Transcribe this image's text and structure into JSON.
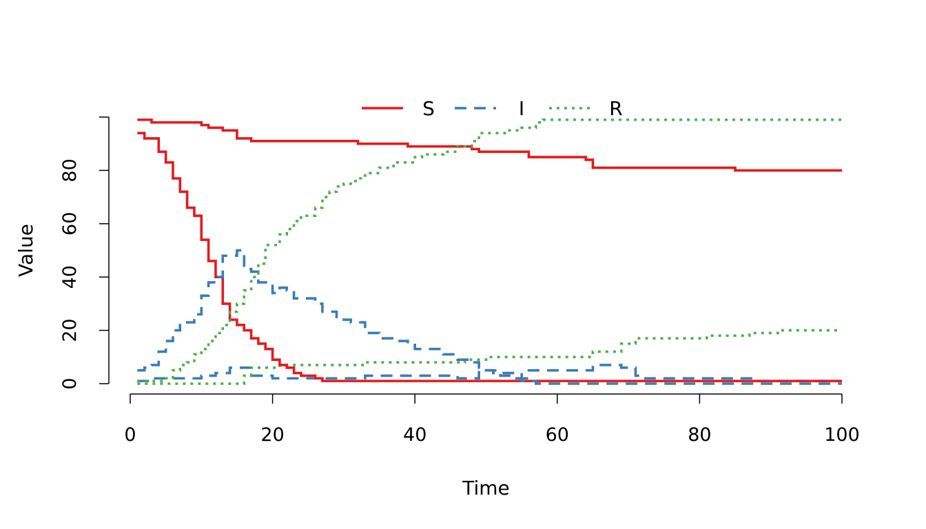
{
  "chart_data": {
    "type": "line",
    "line_style": "step",
    "title": "",
    "xlabel": "Time",
    "ylabel": "Value",
    "xlim": [
      0,
      100
    ],
    "ylim": [
      0,
      100
    ],
    "x_ticks": [
      0,
      20,
      40,
      60,
      80,
      100
    ],
    "y_ticks": [
      0,
      20,
      40,
      60,
      80
    ],
    "grid": false,
    "legend": {
      "placement": "top",
      "orientation": "horizontal",
      "entries": [
        {
          "label": "S",
          "color": "#E41A1C",
          "dash": "solid"
        },
        {
          "label": "I",
          "color": "#377EB8",
          "dash": "dashed"
        },
        {
          "label": "R",
          "color": "#4DAF4A",
          "dash": "dotted"
        }
      ]
    },
    "simulations": [
      {
        "series": [
          {
            "name": "S",
            "color": "#E41A1C",
            "dash": "solid",
            "points": [
              [
                1,
                99
              ],
              [
                3,
                98
              ],
              [
                10,
                97
              ],
              [
                11,
                96
              ],
              [
                13,
                95
              ],
              [
                15,
                92
              ],
              [
                17,
                91
              ],
              [
                32,
                90
              ],
              [
                39,
                89
              ],
              [
                48,
                88
              ],
              [
                49,
                87
              ],
              [
                56,
                85
              ],
              [
                64,
                84
              ],
              [
                65,
                81
              ],
              [
                85,
                80
              ],
              [
                100,
                80
              ]
            ]
          },
          {
            "name": "I",
            "color": "#377EB8",
            "dash": "dashed",
            "points": [
              [
                1,
                1
              ],
              [
                3,
                2
              ],
              [
                10,
                3
              ],
              [
                12,
                4
              ],
              [
                14,
                6
              ],
              [
                15,
                6
              ],
              [
                17,
                3
              ],
              [
                20,
                2
              ],
              [
                32,
                2
              ],
              [
                33,
                3
              ],
              [
                46,
                2
              ],
              [
                49,
                5
              ],
              [
                51,
                4
              ],
              [
                55,
                2
              ],
              [
                56,
                5
              ],
              [
                64,
                5
              ],
              [
                65,
                7
              ],
              [
                69,
                6
              ],
              [
                71,
                3
              ],
              [
                72,
                2
              ],
              [
                85,
                2
              ],
              [
                88,
                1
              ],
              [
                100,
                1
              ]
            ]
          },
          {
            "name": "R",
            "color": "#4DAF4A",
            "dash": "dotted",
            "points": [
              [
                1,
                0
              ],
              [
                15,
                0
              ],
              [
                16,
                3
              ],
              [
                17,
                6
              ],
              [
                21,
                7
              ],
              [
                33,
                8
              ],
              [
                47,
                9
              ],
              [
                50,
                10
              ],
              [
                64,
                10
              ],
              [
                65,
                12
              ],
              [
                69,
                15
              ],
              [
                71,
                17
              ],
              [
                80,
                17
              ],
              [
                81,
                18
              ],
              [
                87,
                19
              ],
              [
                91,
                20
              ],
              [
                100,
                20
              ]
            ]
          }
        ]
      },
      {
        "series": [
          {
            "name": "S",
            "color": "#E41A1C",
            "dash": "solid",
            "points": [
              [
                1,
                94
              ],
              [
                2,
                92
              ],
              [
                4,
                87
              ],
              [
                5,
                83
              ],
              [
                6,
                77
              ],
              [
                7,
                72
              ],
              [
                8,
                66
              ],
              [
                9,
                63
              ],
              [
                10,
                54
              ],
              [
                11,
                46
              ],
              [
                12,
                40
              ],
              [
                13,
                30
              ],
              [
                14,
                24
              ],
              [
                15,
                22
              ],
              [
                16,
                20
              ],
              [
                17,
                17
              ],
              [
                18,
                15
              ],
              [
                19,
                13
              ],
              [
                20,
                9
              ],
              [
                21,
                7
              ],
              [
                22,
                6
              ],
              [
                23,
                4
              ],
              [
                24,
                3
              ],
              [
                26,
                2
              ],
              [
                27,
                1
              ],
              [
                100,
                1
              ]
            ]
          },
          {
            "name": "I",
            "color": "#377EB8",
            "dash": "dashed",
            "points": [
              [
                1,
                5
              ],
              [
                2,
                6
              ],
              [
                3,
                7
              ],
              [
                4,
                12
              ],
              [
                5,
                16
              ],
              [
                6,
                20
              ],
              [
                7,
                22
              ],
              [
                8,
                23
              ],
              [
                9,
                26
              ],
              [
                10,
                33
              ],
              [
                11,
                38
              ],
              [
                12,
                40
              ],
              [
                13,
                48
              ],
              [
                15,
                50
              ],
              [
                16,
                43
              ],
              [
                17,
                42
              ],
              [
                18,
                38
              ],
              [
                20,
                34
              ],
              [
                21,
                36
              ],
              [
                22,
                35
              ],
              [
                23,
                32
              ],
              [
                26,
                30
              ],
              [
                27,
                27
              ],
              [
                29,
                25
              ],
              [
                30,
                24
              ],
              [
                31,
                23
              ],
              [
                33,
                19
              ],
              [
                35,
                17
              ],
              [
                37,
                16
              ],
              [
                39,
                15
              ],
              [
                40,
                13
              ],
              [
                44,
                11
              ],
              [
                46,
                9
              ],
              [
                48,
                8
              ],
              [
                49,
                6
              ],
              [
                50,
                5
              ],
              [
                52,
                3
              ],
              [
                54,
                2
              ],
              [
                55,
                1
              ],
              [
                57,
                0
              ],
              [
                100,
                0
              ]
            ]
          },
          {
            "name": "R",
            "color": "#4DAF4A",
            "dash": "dotted",
            "points": [
              [
                1,
                1
              ],
              [
                5,
                2
              ],
              [
                6,
                5
              ],
              [
                7,
                7
              ],
              [
                8,
                8
              ],
              [
                9,
                11
              ],
              [
                10,
                13
              ],
              [
                11,
                16
              ],
              [
                12,
                19
              ],
              [
                13,
                22
              ],
              [
                14,
                27
              ],
              [
                15,
                30
              ],
              [
                16,
                35
              ],
              [
                17,
                40
              ],
              [
                18,
                45
              ],
              [
                19,
                52
              ],
              [
                21,
                56
              ],
              [
                22,
                58
              ],
              [
                23,
                61
              ],
              [
                24,
                63
              ],
              [
                26,
                66
              ],
              [
                27,
                70
              ],
              [
                28,
                72
              ],
              [
                29,
                74
              ],
              [
                30,
                75
              ],
              [
                31,
                76
              ],
              [
                32,
                77
              ],
              [
                33,
                79
              ],
              [
                35,
                81
              ],
              [
                37,
                83
              ],
              [
                40,
                85
              ],
              [
                41,
                86
              ],
              [
                44,
                87
              ],
              [
                46,
                89
              ],
              [
                48,
                91
              ],
              [
                49,
                94
              ],
              [
                53,
                95
              ],
              [
                55,
                96
              ],
              [
                57,
                98
              ],
              [
                58,
                99
              ],
              [
                100,
                99
              ]
            ]
          }
        ]
      }
    ]
  }
}
